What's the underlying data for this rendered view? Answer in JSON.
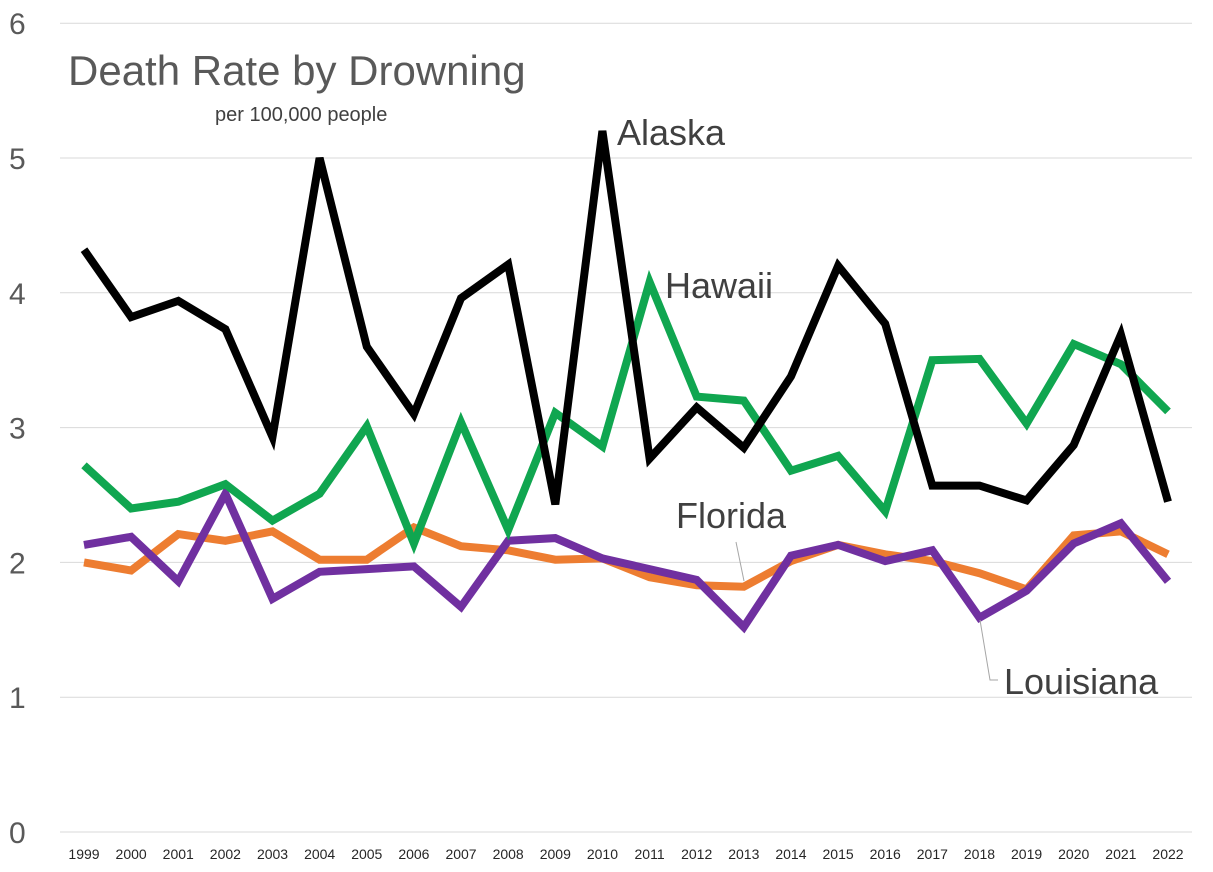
{
  "chart_data": {
    "type": "line",
    "title": "Death Rate by Drowning",
    "subtitle": "per 100,000 people",
    "x": [
      "1999",
      "2000",
      "2001",
      "2002",
      "2003",
      "2004",
      "2005",
      "2006",
      "2007",
      "2008",
      "2009",
      "2010",
      "2011",
      "2012",
      "2013",
      "2014",
      "2015",
      "2016",
      "2017",
      "2018",
      "2019",
      "2020",
      "2021",
      "2022"
    ],
    "ylim": [
      0,
      6
    ],
    "yticks": [
      "0",
      "1",
      "2",
      "3",
      "4",
      "5",
      "6"
    ],
    "grid": true,
    "legend": "direct labels on lines",
    "series": [
      {
        "name": "Alaska",
        "color": "#000000",
        "values": [
          4.32,
          3.82,
          3.94,
          3.73,
          2.93,
          5.0,
          3.6,
          3.1,
          3.96,
          4.21,
          2.43,
          5.2,
          2.77,
          3.15,
          2.85,
          3.38,
          4.2,
          3.77,
          2.57,
          2.57,
          2.46,
          2.87,
          3.69,
          2.45
        ]
      },
      {
        "name": "Hawaii",
        "color": "#10a650",
        "values": [
          2.72,
          2.4,
          2.45,
          2.58,
          2.31,
          2.51,
          3.01,
          2.14,
          3.04,
          2.24,
          3.11,
          2.86,
          4.08,
          3.23,
          3.2,
          2.68,
          2.79,
          2.38,
          3.5,
          3.51,
          3.03,
          3.62,
          3.47,
          3.12
        ]
      },
      {
        "name": "Florida",
        "color": "#ed7d31",
        "values": [
          2.0,
          1.94,
          2.21,
          2.16,
          2.23,
          2.02,
          2.02,
          2.26,
          2.12,
          2.09,
          2.02,
          2.03,
          1.89,
          1.83,
          1.82,
          2.01,
          2.13,
          2.06,
          2.01,
          1.92,
          1.8,
          2.2,
          2.23,
          2.06
        ]
      },
      {
        "name": "Louisiana",
        "color": "#7030a0",
        "values": [
          2.13,
          2.19,
          1.86,
          2.51,
          1.73,
          1.93,
          1.95,
          1.97,
          1.67,
          2.16,
          2.18,
          2.03,
          1.95,
          1.87,
          1.52,
          2.05,
          2.13,
          2.01,
          2.09,
          1.59,
          1.79,
          2.14,
          2.29,
          1.86
        ]
      }
    ]
  }
}
